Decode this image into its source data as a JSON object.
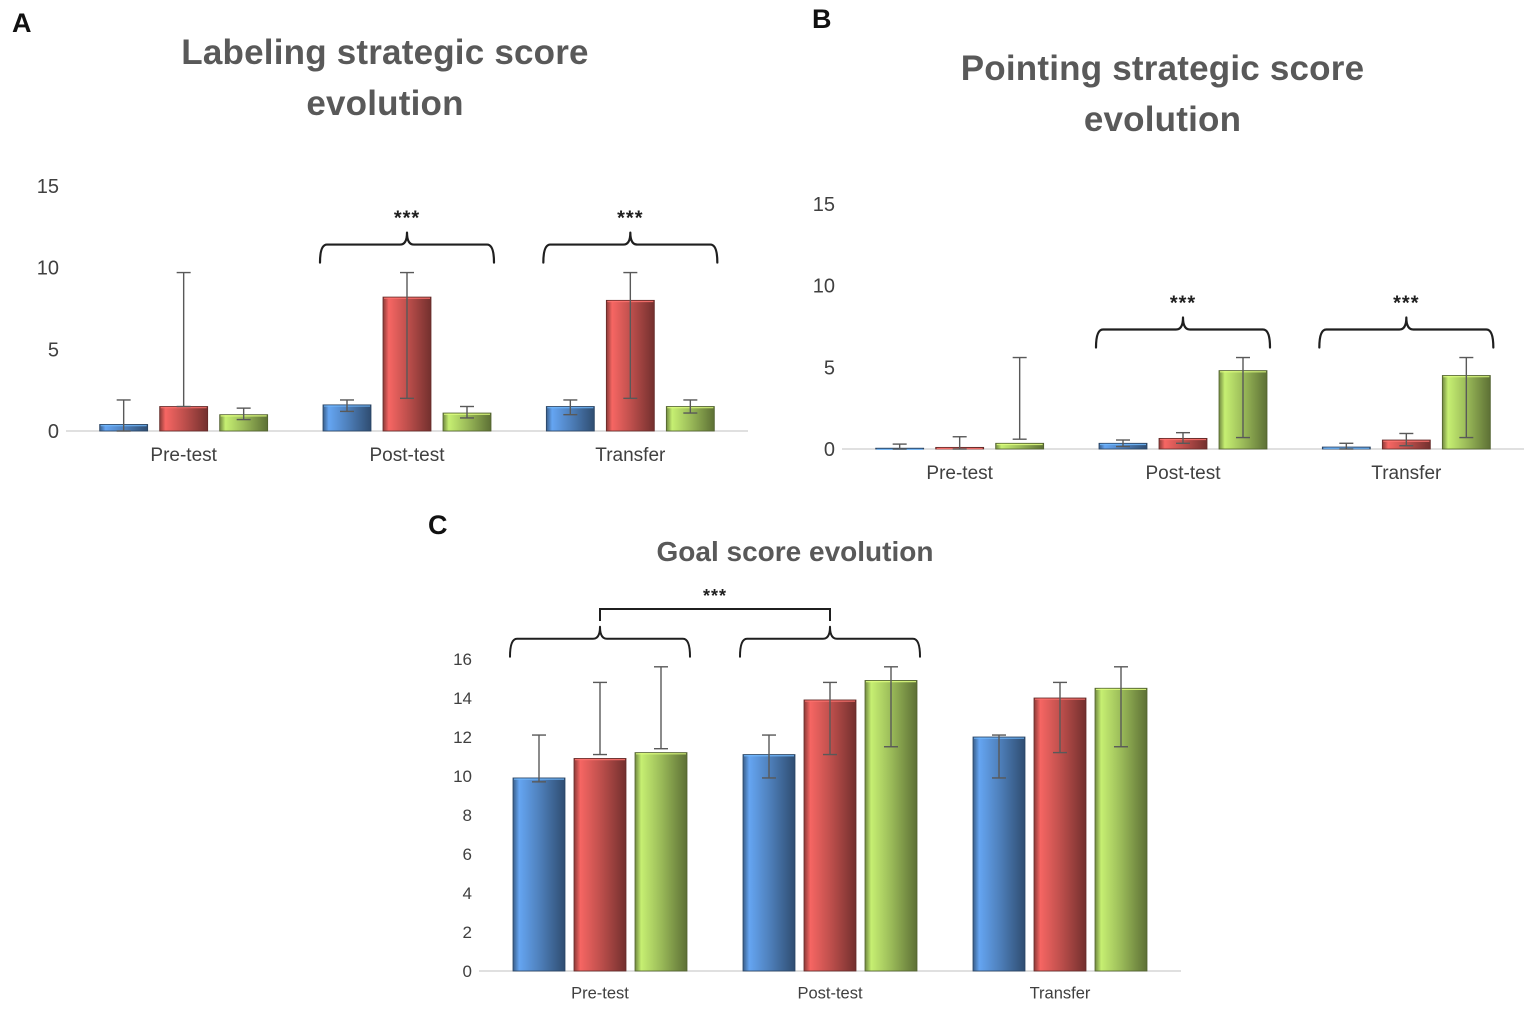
{
  "style": {
    "background": "#ffffff",
    "title_color": "#595959",
    "text_color": "#404040",
    "axis_line_color": "#d6d6d6",
    "error_bar_color": "#595959",
    "sig_color": "#1f1f1f"
  },
  "chart_data": [
    {
      "id": "labeling",
      "panel_label": "A",
      "type": "bar",
      "title": "Labeling strategic score evolution",
      "title_lines": [
        "Labeling strategic score",
        "evolution"
      ],
      "categories": [
        "Pre-test",
        "Post-test",
        "Transfer"
      ],
      "series": [
        {
          "name": "blue-series",
          "color": "#4F81BD",
          "values": [
            0.4,
            1.6,
            1.5
          ],
          "err_low": [
            0.0,
            1.2,
            1.0
          ],
          "err_high": [
            1.9,
            1.9,
            1.9
          ]
        },
        {
          "name": "red-series",
          "color": "#C0504D",
          "values": [
            1.5,
            8.2,
            8.0
          ],
          "err_low": [
            1.5,
            2.0,
            2.0
          ],
          "err_high": [
            9.7,
            9.7,
            9.7
          ]
        },
        {
          "name": "green-series",
          "color": "#9BBB59",
          "values": [
            1.0,
            1.1,
            1.5
          ],
          "err_low": [
            0.7,
            0.8,
            1.1
          ],
          "err_high": [
            1.4,
            1.5,
            1.9
          ]
        }
      ],
      "ylim": [
        0,
        15
      ],
      "yticks": [
        0,
        5,
        10,
        15
      ],
      "grid": false,
      "legend": "none",
      "annotations": [
        {
          "type": "brace",
          "group": 1,
          "label": "***"
        },
        {
          "type": "brace",
          "group": 2,
          "label": "***"
        }
      ]
    },
    {
      "id": "pointing",
      "panel_label": "B",
      "type": "bar",
      "title": "Pointing strategic score evolution",
      "title_lines": [
        "Pointing strategic score",
        "evolution"
      ],
      "categories": [
        "Pre-test",
        "Post-test",
        "Transfer"
      ],
      "series": [
        {
          "name": "blue-series",
          "color": "#4F81BD",
          "values": [
            0.05,
            0.35,
            0.12
          ],
          "err_low": [
            0.0,
            0.15,
            0.0
          ],
          "err_high": [
            0.3,
            0.55,
            0.35
          ]
        },
        {
          "name": "red-series",
          "color": "#C0504D",
          "values": [
            0.1,
            0.65,
            0.55
          ],
          "err_low": [
            0.0,
            0.35,
            0.2
          ],
          "err_high": [
            0.75,
            1.0,
            0.95
          ]
        },
        {
          "name": "green-series",
          "color": "#9BBB59",
          "values": [
            0.35,
            4.8,
            4.5
          ],
          "err_low": [
            0.6,
            0.7,
            0.7
          ],
          "err_high": [
            5.6,
            5.6,
            5.6
          ]
        }
      ],
      "ylim": [
        0,
        15
      ],
      "yticks": [
        0,
        5,
        10,
        15
      ],
      "grid": false,
      "legend": "none",
      "annotations": [
        {
          "type": "brace",
          "group": 1,
          "label": "***"
        },
        {
          "type": "brace",
          "group": 2,
          "label": "***"
        }
      ]
    },
    {
      "id": "goal",
      "panel_label": "C",
      "type": "bar",
      "title": "Goal score evolution",
      "title_lines": [
        "Goal score evolution"
      ],
      "categories": [
        "Pre-test",
        "Post-test",
        "Transfer"
      ],
      "series": [
        {
          "name": "blue-series",
          "color": "#4F81BD",
          "values": [
            9.9,
            11.1,
            12.0
          ],
          "err_low": [
            9.7,
            9.9,
            9.9
          ],
          "err_high": [
            12.1,
            12.1,
            12.1
          ]
        },
        {
          "name": "red-series",
          "color": "#C0504D",
          "values": [
            10.9,
            13.9,
            14.0
          ],
          "err_low": [
            11.1,
            11.1,
            11.2
          ],
          "err_high": [
            14.8,
            14.8,
            14.8
          ]
        },
        {
          "name": "green-series",
          "color": "#9BBB59",
          "values": [
            11.2,
            14.9,
            14.5
          ],
          "err_low": [
            11.4,
            11.5,
            11.5
          ],
          "err_high": [
            15.6,
            15.6,
            15.6
          ]
        }
      ],
      "ylim": [
        0,
        16
      ],
      "yticks": [
        0,
        2,
        4,
        6,
        8,
        10,
        12,
        14,
        16
      ],
      "grid": false,
      "legend": "none",
      "annotations": [
        {
          "type": "brace",
          "group": 0
        },
        {
          "type": "brace",
          "group": 1
        },
        {
          "type": "bracket",
          "from_group": 0,
          "to_group": 1,
          "label": "***"
        }
      ]
    }
  ]
}
